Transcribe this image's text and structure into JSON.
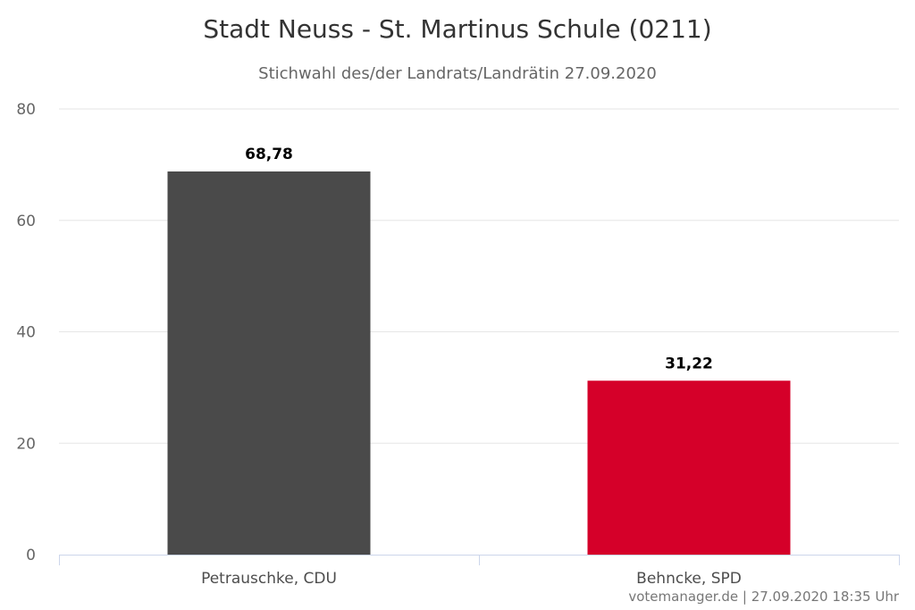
{
  "chart_data": {
    "type": "bar",
    "title": "Stadt Neuss - St. Martinus Schule (0211)",
    "subtitle": "Stichwahl des/der Landrats/Landrätin 27.09.2020",
    "categories": [
      "Petrauschke, CDU",
      "Behncke, SPD"
    ],
    "values": [
      68.78,
      31.22
    ],
    "value_labels": [
      "68,78",
      "31,22"
    ],
    "colors": [
      "#4a4a4a",
      "#d50029"
    ],
    "ylim": [
      0,
      80
    ],
    "yticks": [
      "0",
      "20",
      "40",
      "60",
      "80"
    ],
    "ytick_values": [
      0,
      20,
      40,
      60,
      80
    ],
    "grid": true,
    "legend": "none"
  },
  "credit": "votemanager.de | 27.09.2020 18:35 Uhr"
}
